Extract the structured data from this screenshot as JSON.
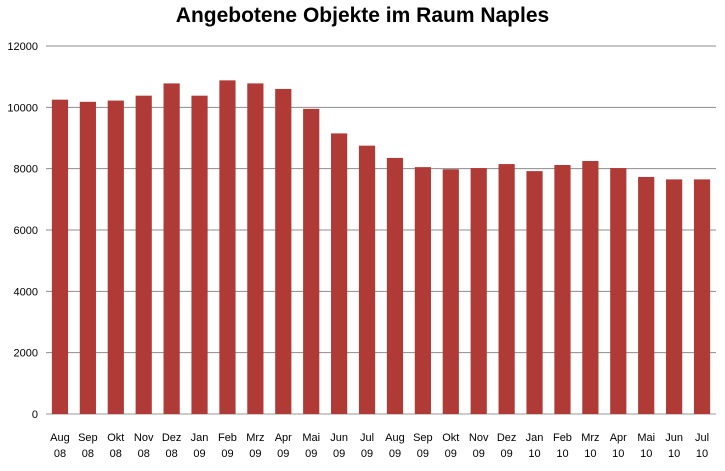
{
  "chart_data": {
    "type": "bar",
    "title": "Angebotene Objekte im Raum Naples",
    "xlabel": "",
    "ylabel": "",
    "ylim": [
      0,
      12000
    ],
    "yticks": [
      0,
      2000,
      4000,
      6000,
      8000,
      10000,
      12000
    ],
    "grid": true,
    "legend": "none",
    "bar_color": "#B03A35",
    "categories": [
      [
        "Aug",
        "08"
      ],
      [
        "Sep",
        "08"
      ],
      [
        "Okt",
        "08"
      ],
      [
        "Nov",
        "08"
      ],
      [
        "Dez",
        "08"
      ],
      [
        "Jan",
        "09"
      ],
      [
        "Feb",
        "09"
      ],
      [
        "Mrz",
        "09"
      ],
      [
        "Apr",
        "09"
      ],
      [
        "Mai",
        "09"
      ],
      [
        "Jun",
        "09"
      ],
      [
        "Jul",
        "09"
      ],
      [
        "Aug",
        "09"
      ],
      [
        "Sep",
        "09"
      ],
      [
        "Okt",
        "09"
      ],
      [
        "Nov",
        "09"
      ],
      [
        "Dez",
        "09"
      ],
      [
        "Jan",
        "10"
      ],
      [
        "Feb",
        "10"
      ],
      [
        "Mrz",
        "10"
      ],
      [
        "Apr",
        "10"
      ],
      [
        "Mai",
        "10"
      ],
      [
        "Jun",
        "10"
      ],
      [
        "Jul",
        "10"
      ]
    ],
    "values": [
      10250,
      10180,
      10220,
      10380,
      10780,
      10380,
      10880,
      10780,
      10600,
      9950,
      9150,
      8750,
      8350,
      8050,
      7980,
      8020,
      8150,
      7920,
      8120,
      8250,
      8020,
      7730,
      7650,
      7650
    ]
  }
}
